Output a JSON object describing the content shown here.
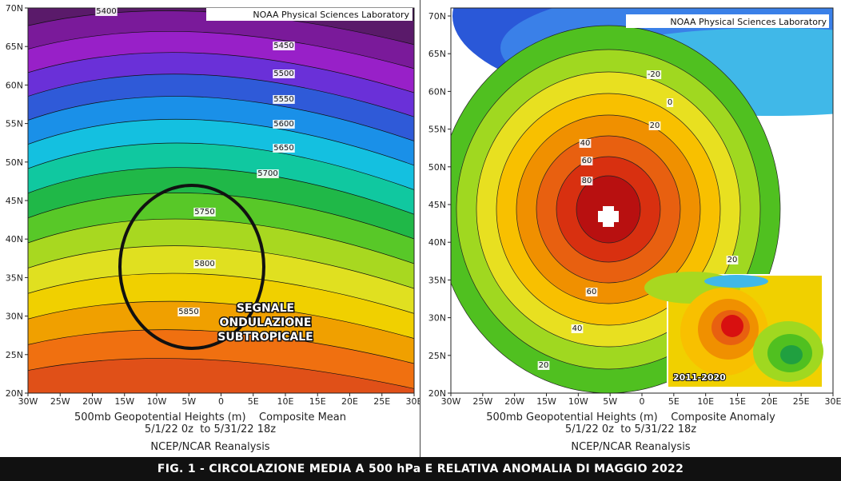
{
  "left": {
    "credit": "NOAA Physical Sciences Laboratory",
    "caption": {
      "line1": "500mb Geopotential Heights (m)    Composite Mean",
      "line2": "5/1/22 0z  to 5/31/22 18z",
      "line3": "NCEP/NCAR Reanalysis"
    },
    "contour_labels": [
      "5400",
      "5450",
      "5500",
      "5550",
      "5600",
      "5650",
      "5700",
      "5750",
      "5800",
      "5850"
    ],
    "annotation": [
      "SEGNALE",
      "ONDULAZIONE",
      "SUBTROPICALE"
    ]
  },
  "right": {
    "credit": "NOAA Physical Sciences Laboratory",
    "caption": {
      "line1": "500mb Geopotential Heights (m)    Composite Anomaly",
      "line2": "5/1/22 0z  to 5/31/22 18z",
      "line3": "NCEP/NCAR Reanalysis"
    },
    "contour_labels": [
      "-20",
      "0",
      "20",
      "40",
      "60",
      "80",
      "60",
      "40",
      "20",
      "20"
    ],
    "inset_label": "2011-2020"
  },
  "axes": {
    "lat_labels": [
      "70N",
      "65N",
      "60N",
      "55N",
      "50N",
      "45N",
      "40N",
      "35N",
      "30N",
      "25N",
      "20N"
    ],
    "lon_labels": [
      "30W",
      "25W",
      "20W",
      "15W",
      "10W",
      "5W",
      "0",
      "5E",
      "10E",
      "15E",
      "20E",
      "25E",
      "30E"
    ]
  },
  "footer": "FIG. 1 - CIRCOLAZIONE MEDIA A 500 hPa E RELATIVA ANOMALIA DI MAGGIO 2022",
  "colors": {
    "mean_bands": [
      "#3a1048",
      "#5a1a6a",
      "#7a1a9a",
      "#9820c8",
      "#6a30d8",
      "#2f5ad8",
      "#1a90e8",
      "#14c0e0",
      "#10c8a0",
      "#20b848",
      "#58c828",
      "#a8d820",
      "#e0e020",
      "#f0d000",
      "#f0a000",
      "#f07010",
      "#e05018"
    ],
    "anomaly_bands": [
      "#2a58d8",
      "#3a80e8",
      "#40b8e8",
      "#60d8f0",
      "#ffffff",
      "#50c020",
      "#a0d820",
      "#e8e020",
      "#f8c000",
      "#f09000",
      "#e86010",
      "#d83010",
      "#b81010"
    ]
  }
}
